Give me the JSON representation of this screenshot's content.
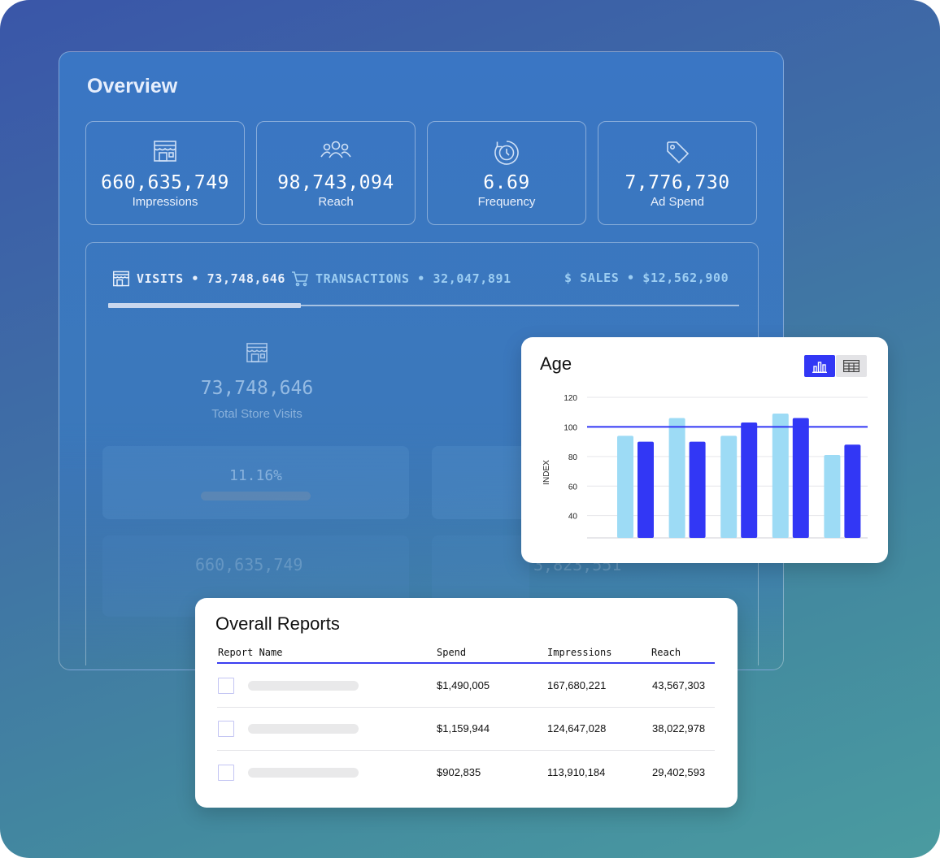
{
  "overview": {
    "title": "Overview",
    "stats": [
      {
        "value": "660,635,749",
        "label": "Impressions",
        "icon": "store-icon"
      },
      {
        "value": "98,743,094",
        "label": "Reach",
        "icon": "people-icon"
      },
      {
        "value": "6.69",
        "label": "Frequency",
        "icon": "refresh-clock-icon"
      },
      {
        "value": "7,776,730",
        "label": "Ad Spend",
        "icon": "tag-icon"
      }
    ],
    "tabs": [
      {
        "label": "VISITS • 73,748,646",
        "icon": "store-icon"
      },
      {
        "label": "TRANSACTIONS • 32,047,891",
        "icon": "cart-icon"
      },
      {
        "label": "$ SALES • $12,562,900",
        "icon": ""
      }
    ],
    "total_visits_value": "73,748,646",
    "total_visits_label": "Total Store Visits",
    "percent": "11.16%",
    "faint_number": "660,635,749",
    "faint_number_2": "3,823,551"
  },
  "age_chart": {
    "title": "Age",
    "accent": "#3237f5",
    "light": "#9ddbf5"
  },
  "chart_data": {
    "type": "bar",
    "title": "Age",
    "xlabel": "",
    "ylabel": "INDEX",
    "ylim": [
      25,
      120
    ],
    "yticks": [
      40,
      60,
      80,
      100,
      120
    ],
    "reference_line": 100,
    "categories": [
      "",
      "",
      "",
      "",
      ""
    ],
    "series": [
      {
        "values": [
          94,
          106,
          94,
          109,
          81
        ]
      },
      {
        "values": [
          90,
          90,
          103,
          106,
          88
        ]
      }
    ],
    "grid": true,
    "legend": "none"
  },
  "reports": {
    "title": "Overall Reports",
    "columns": [
      "Report Name",
      "Spend",
      "Impressions",
      "Reach"
    ],
    "rows": [
      {
        "spend": "$1,490,005",
        "impressions": "167,680,221",
        "reach": "43,567,303"
      },
      {
        "spend": "$1,159,944",
        "impressions": "124,647,028",
        "reach": "38,022,978"
      },
      {
        "spend": "$902,835",
        "impressions": "113,910,184",
        "reach": "29,402,593"
      }
    ]
  }
}
